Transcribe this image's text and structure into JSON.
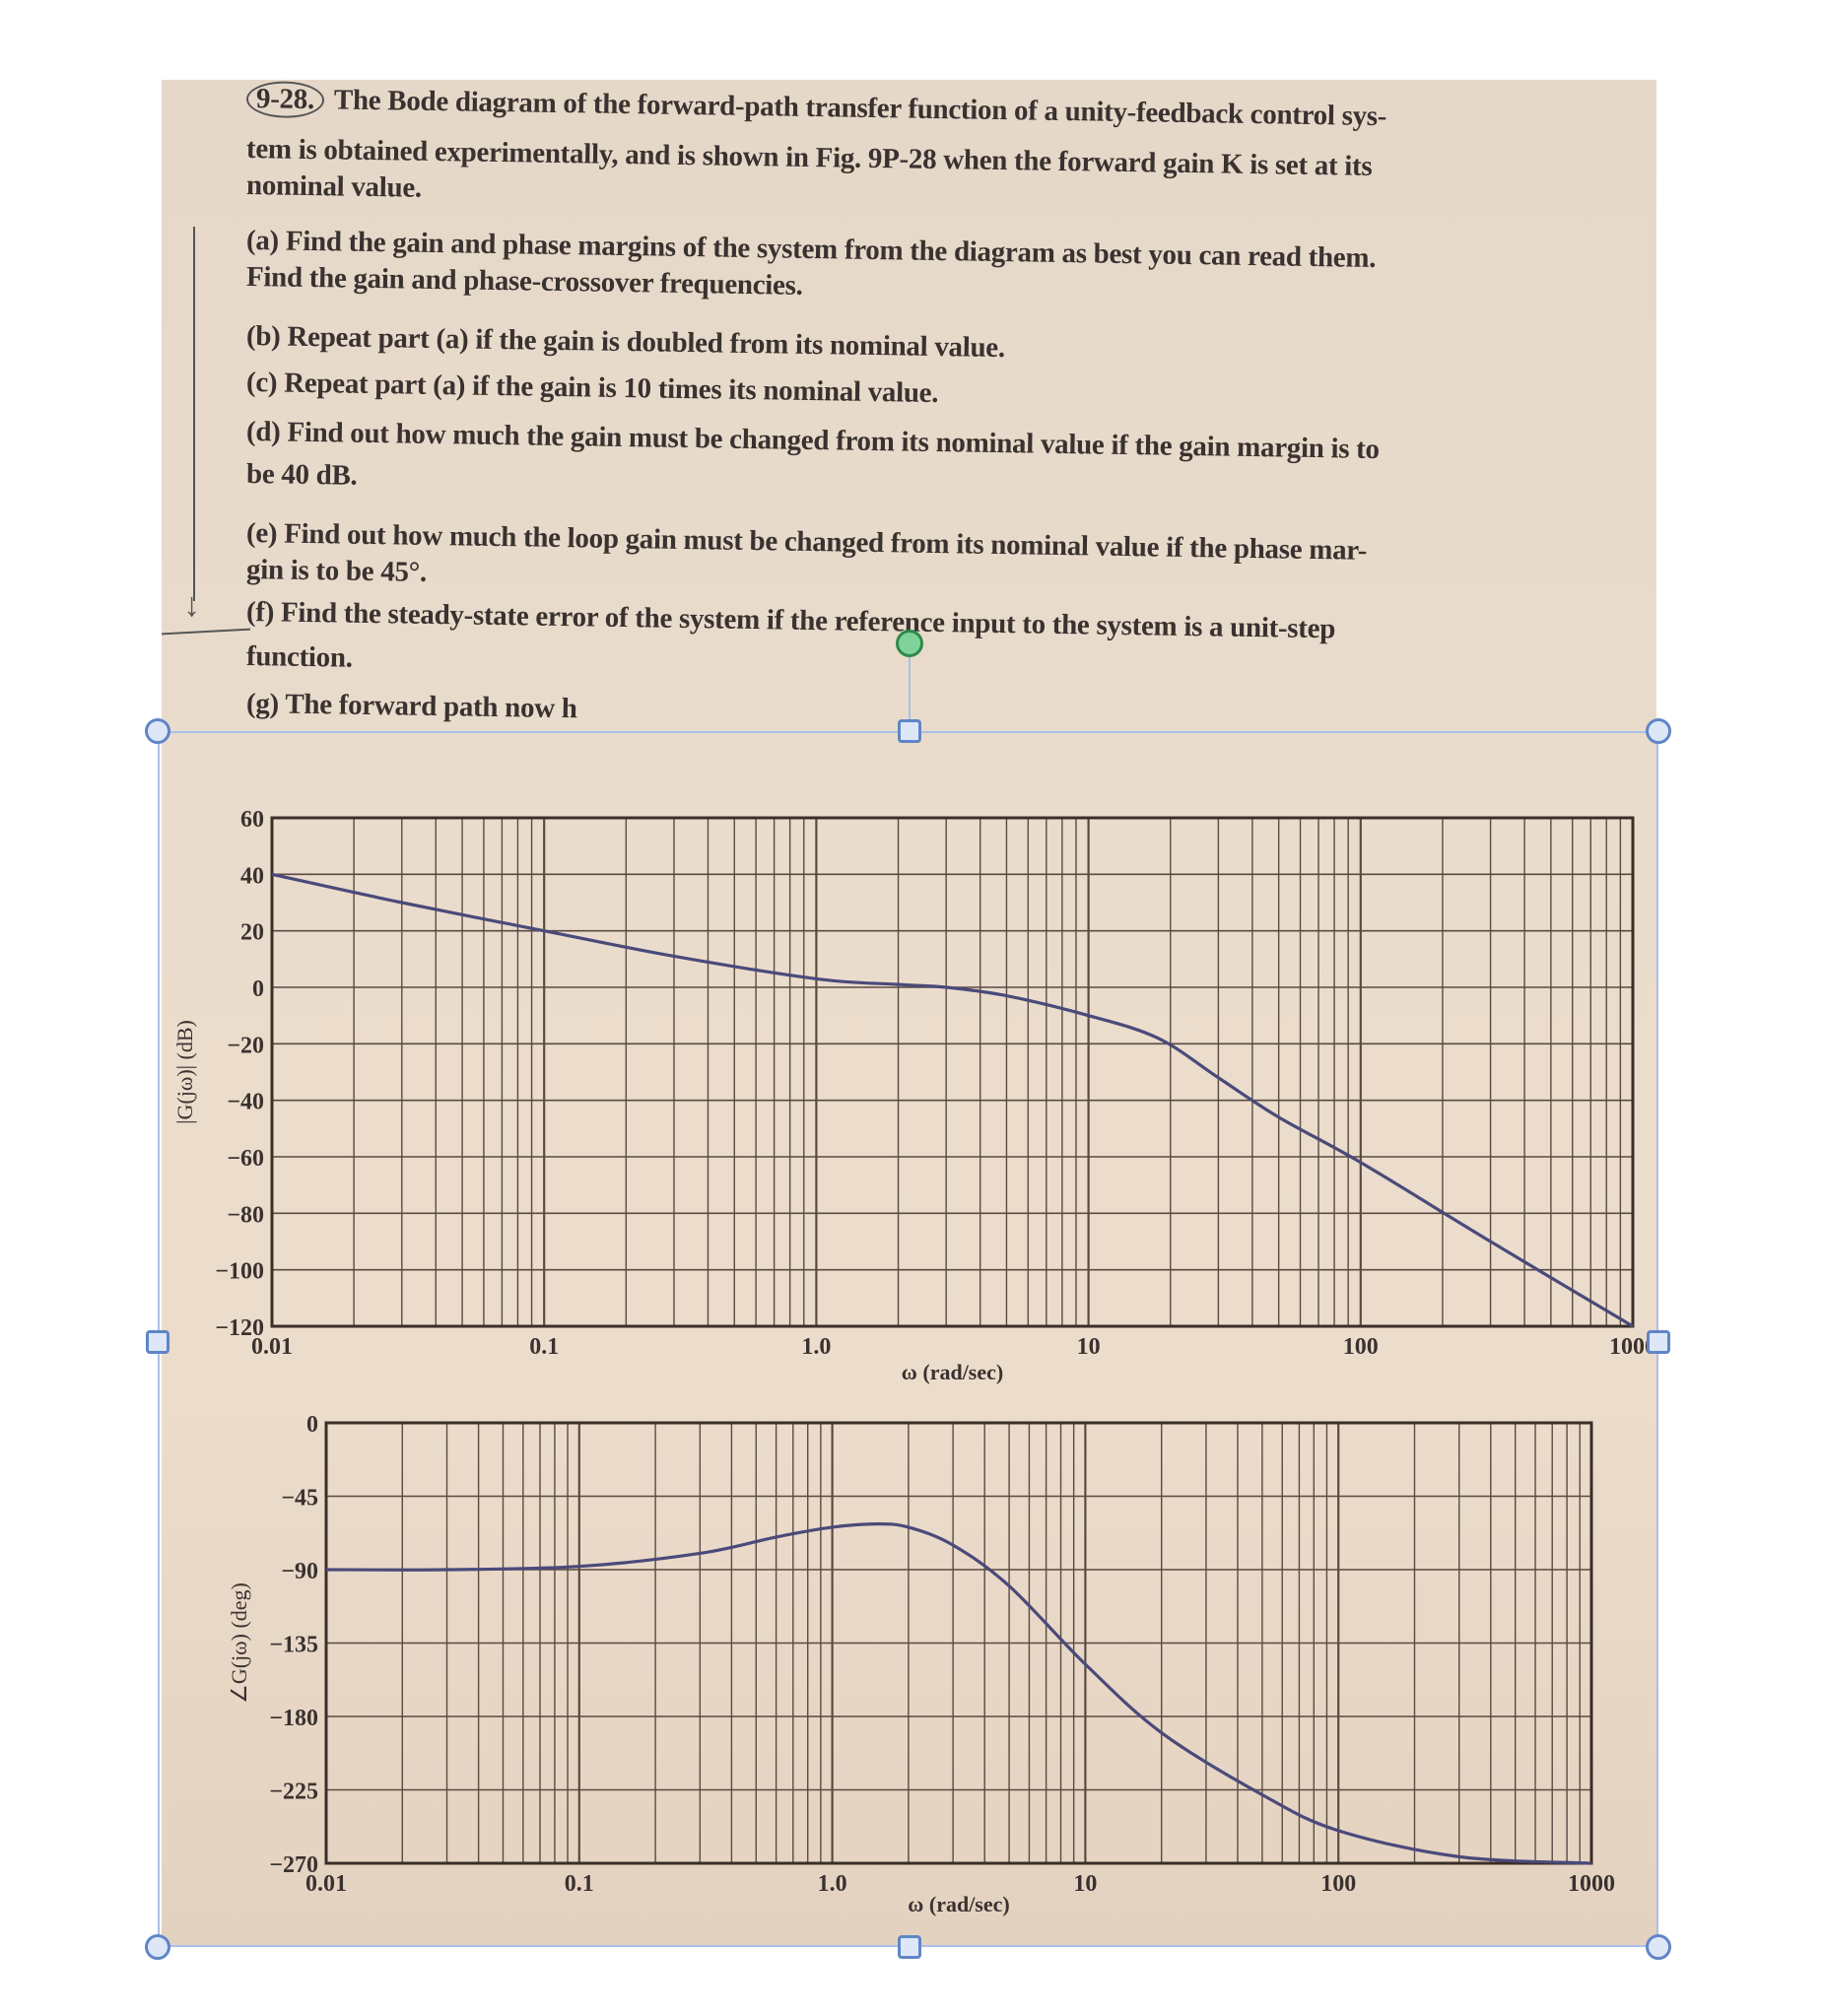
{
  "problem": {
    "number": "9-28.",
    "lines": [
      "The Bode diagram of the forward-path transfer function of a unity-feedback control sys-",
      "tem is obtained experimentally, and is shown in Fig. 9P-28 when the forward gain K is set at its",
      "nominal value.",
      "(a) Find the gain and phase margins of the system from the diagram as best you can read them.",
      "Find the gain and phase-crossover frequencies.",
      "(b) Repeat part (a) if the gain is doubled from its nominal value.",
      "(c) Repeat part (a) if the gain is 10 times its nominal value.",
      "(d) Find out how much the gain must be changed from its nominal value if the gain margin is to",
      "be 40 dB.",
      "(e) Find out how much the loop gain must be changed from its nominal value if the phase mar-",
      "gin is to be 45°.",
      "(f) Find the steady-state error of the system if the reference input to the system is a unit-step",
      "function.",
      "(g) The forward path now h"
    ]
  },
  "colors": {
    "curve": "#4a4a7a",
    "grid": "#5a4a42",
    "paper": "#e8dacb",
    "selection": "#5f86c6",
    "rotate_handle": "#7fd39a"
  },
  "chart_data": [
    {
      "type": "line",
      "xscale": "log",
      "xlim": [
        0.01,
        1000
      ],
      "ylim": [
        -120,
        60
      ],
      "grid": true,
      "xlabel": "ω (rad/sec)",
      "ylabel": "|G(jω)| (dB)",
      "xticks": [
        "0.01",
        "0.1",
        "1.0",
        "10",
        "100",
        "1000"
      ],
      "yticks": [
        "60",
        "40",
        "20",
        "0",
        "-20",
        "-40",
        "-60",
        "-80",
        "-100",
        "-120"
      ],
      "x": [
        0.01,
        0.03,
        0.1,
        0.3,
        1,
        2,
        3,
        5,
        10,
        18,
        30,
        50,
        100,
        300,
        1000
      ],
      "y": [
        40,
        30,
        20,
        11,
        3,
        1,
        0,
        -3,
        -10,
        -18,
        -32,
        -46,
        -62,
        -90,
        -120
      ]
    },
    {
      "type": "line",
      "xscale": "log",
      "xlim": [
        0.01,
        1000
      ],
      "ylim": [
        -270,
        0
      ],
      "grid": true,
      "xlabel": "ω (rad/sec)",
      "ylabel": "∠G(jω) (deg)",
      "xticks": [
        "0.01",
        "0.1",
        "1.0",
        "10",
        "100",
        "1000"
      ],
      "yticks": [
        "0",
        "-45",
        "-90",
        "-135",
        "-180",
        "-225",
        "-270"
      ],
      "x": [
        0.01,
        0.03,
        0.1,
        0.3,
        0.6,
        1,
        1.5,
        2,
        3,
        5,
        10,
        20,
        50,
        100,
        300,
        1000
      ],
      "y": [
        -90,
        -90,
        -88,
        -80,
        -70,
        -64,
        -62,
        -64,
        -75,
        -100,
        -148,
        -190,
        -228,
        -250,
        -266,
        -270
      ]
    }
  ]
}
